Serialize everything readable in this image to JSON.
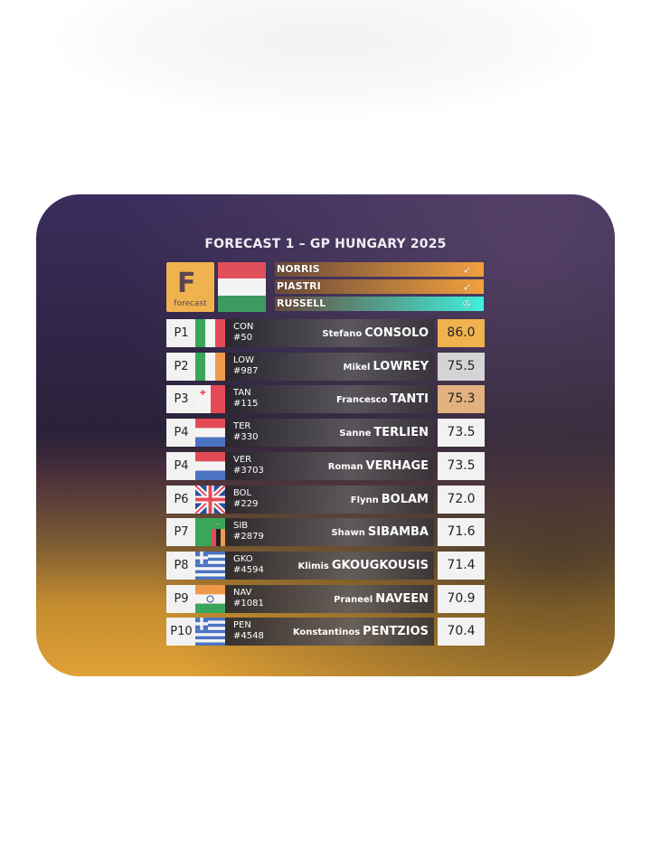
{
  "title": "FORECAST 1 – GP HUNGARY 2025",
  "logo": {
    "letter": "F",
    "word": "forecast",
    "color": "#f0b24f"
  },
  "race_flag": "hungary",
  "podium": [
    {
      "name": "NORRIS",
      "team_icon": "mclaren-icon",
      "color": "#f2a03e"
    },
    {
      "name": "PIASTRI",
      "team_icon": "mclaren-icon",
      "color": "#f2a03e"
    },
    {
      "name": "RUSSELL",
      "team_icon": "mercedes-icon",
      "color": "#3ff0dc"
    }
  ],
  "rows": [
    {
      "pos": "P1",
      "flag": "italy",
      "code": "CON",
      "num": "#50",
      "first": "Stefano",
      "last": "CONSOLO",
      "score": "86.0",
      "score_color": "#f0b24f"
    },
    {
      "pos": "P2",
      "flag": "ireland",
      "code": "LOW",
      "num": "#987",
      "first": "Mikel",
      "last": "LOWREY",
      "score": "75.5",
      "score_color": "#d4d4d4"
    },
    {
      "pos": "P3",
      "flag": "malta",
      "code": "TAN",
      "num": "#115",
      "first": "Francesco",
      "last": "TANTI",
      "score": "75.3",
      "score_color": "#e2b17f"
    },
    {
      "pos": "P4",
      "flag": "netherlands",
      "code": "TER",
      "num": "#330",
      "first": "Sanne",
      "last": "TERLIEN",
      "score": "73.5",
      "score_color": "#f2f2f2"
    },
    {
      "pos": "P4",
      "flag": "netherlands",
      "code": "VER",
      "num": "#3703",
      "first": "Roman",
      "last": "VERHAGE",
      "score": "73.5",
      "score_color": "#f2f2f2"
    },
    {
      "pos": "P6",
      "flag": "uk",
      "code": "BOL",
      "num": "#229",
      "first": "Flynn",
      "last": "BOLAM",
      "score": "72.0",
      "score_color": "#f2f2f2"
    },
    {
      "pos": "P7",
      "flag": "zambia",
      "code": "SIB",
      "num": "#2879",
      "first": "Shawn",
      "last": "SIBAMBA",
      "score": "71.6",
      "score_color": "#f2f2f2"
    },
    {
      "pos": "P8",
      "flag": "greece",
      "code": "GKO",
      "num": "#4594",
      "first": "Klimis",
      "last": "GKOUGKOUSIS",
      "score": "71.4",
      "score_color": "#f2f2f2"
    },
    {
      "pos": "P9",
      "flag": "india",
      "code": "NAV",
      "num": "#1081",
      "first": "Praneel",
      "last": "NAVEEN",
      "score": "70.9",
      "score_color": "#f2f2f2"
    },
    {
      "pos": "P10",
      "flag": "greece",
      "code": "PEN",
      "num": "#4548",
      "first": "Konstantinos",
      "last": "PENTZIOS",
      "score": "70.4",
      "score_color": "#f2f2f2"
    }
  ]
}
